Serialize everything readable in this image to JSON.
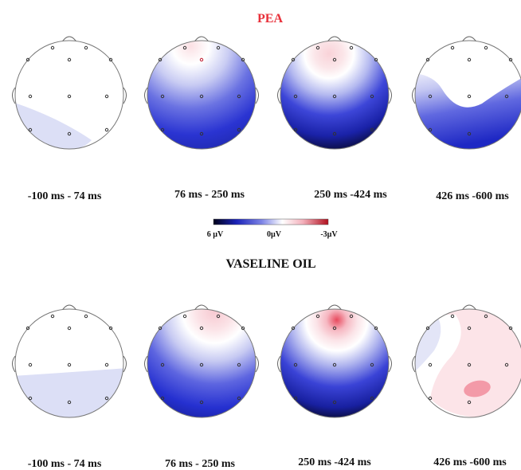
{
  "colors": {
    "title_pea": "#e8303a",
    "title_vaseline": "#111111",
    "neg_strong": "#0a0a2a",
    "neg_mid": "#1f2cd6",
    "neg_light": "#dadcf6",
    "zero": "#ffffff",
    "pos_light": "#f7d2d8",
    "pos_strong": "#c0192e",
    "electrode": "#333333"
  },
  "conditions": [
    {
      "title": "PEA",
      "windows": [
        {
          "label": "-100 ms - 74 ms",
          "peak_negative_uV": 1.2,
          "peak_positive_uV": 0.0
        },
        {
          "label": "76 ms - 250 ms",
          "peak_negative_uV": 5.0,
          "peak_positive_uV": 0.8
        },
        {
          "label": "250 ms -424 ms",
          "peak_negative_uV": 6.0,
          "peak_positive_uV": 0.9
        },
        {
          "label": "426 ms -600 ms",
          "peak_negative_uV": 4.5,
          "peak_positive_uV": 0.0
        }
      ]
    },
    {
      "title": "VASELINE OIL",
      "windows": [
        {
          "label": "-100 ms - 74 ms",
          "peak_negative_uV": 1.0,
          "peak_positive_uV": 0.0
        },
        {
          "label": "76 ms - 250 ms",
          "peak_negative_uV": 5.0,
          "peak_positive_uV": 0.8
        },
        {
          "label": "250 ms -424 ms",
          "peak_negative_uV": 6.0,
          "peak_positive_uV": 1.6
        },
        {
          "label": "426 ms -600 ms",
          "peak_negative_uV": 0.6,
          "peak_positive_uV": 1.5
        }
      ]
    }
  ],
  "colorbar": {
    "min_label": "6 µV",
    "mid_label": "0µV",
    "max_label": "-3µV"
  }
}
